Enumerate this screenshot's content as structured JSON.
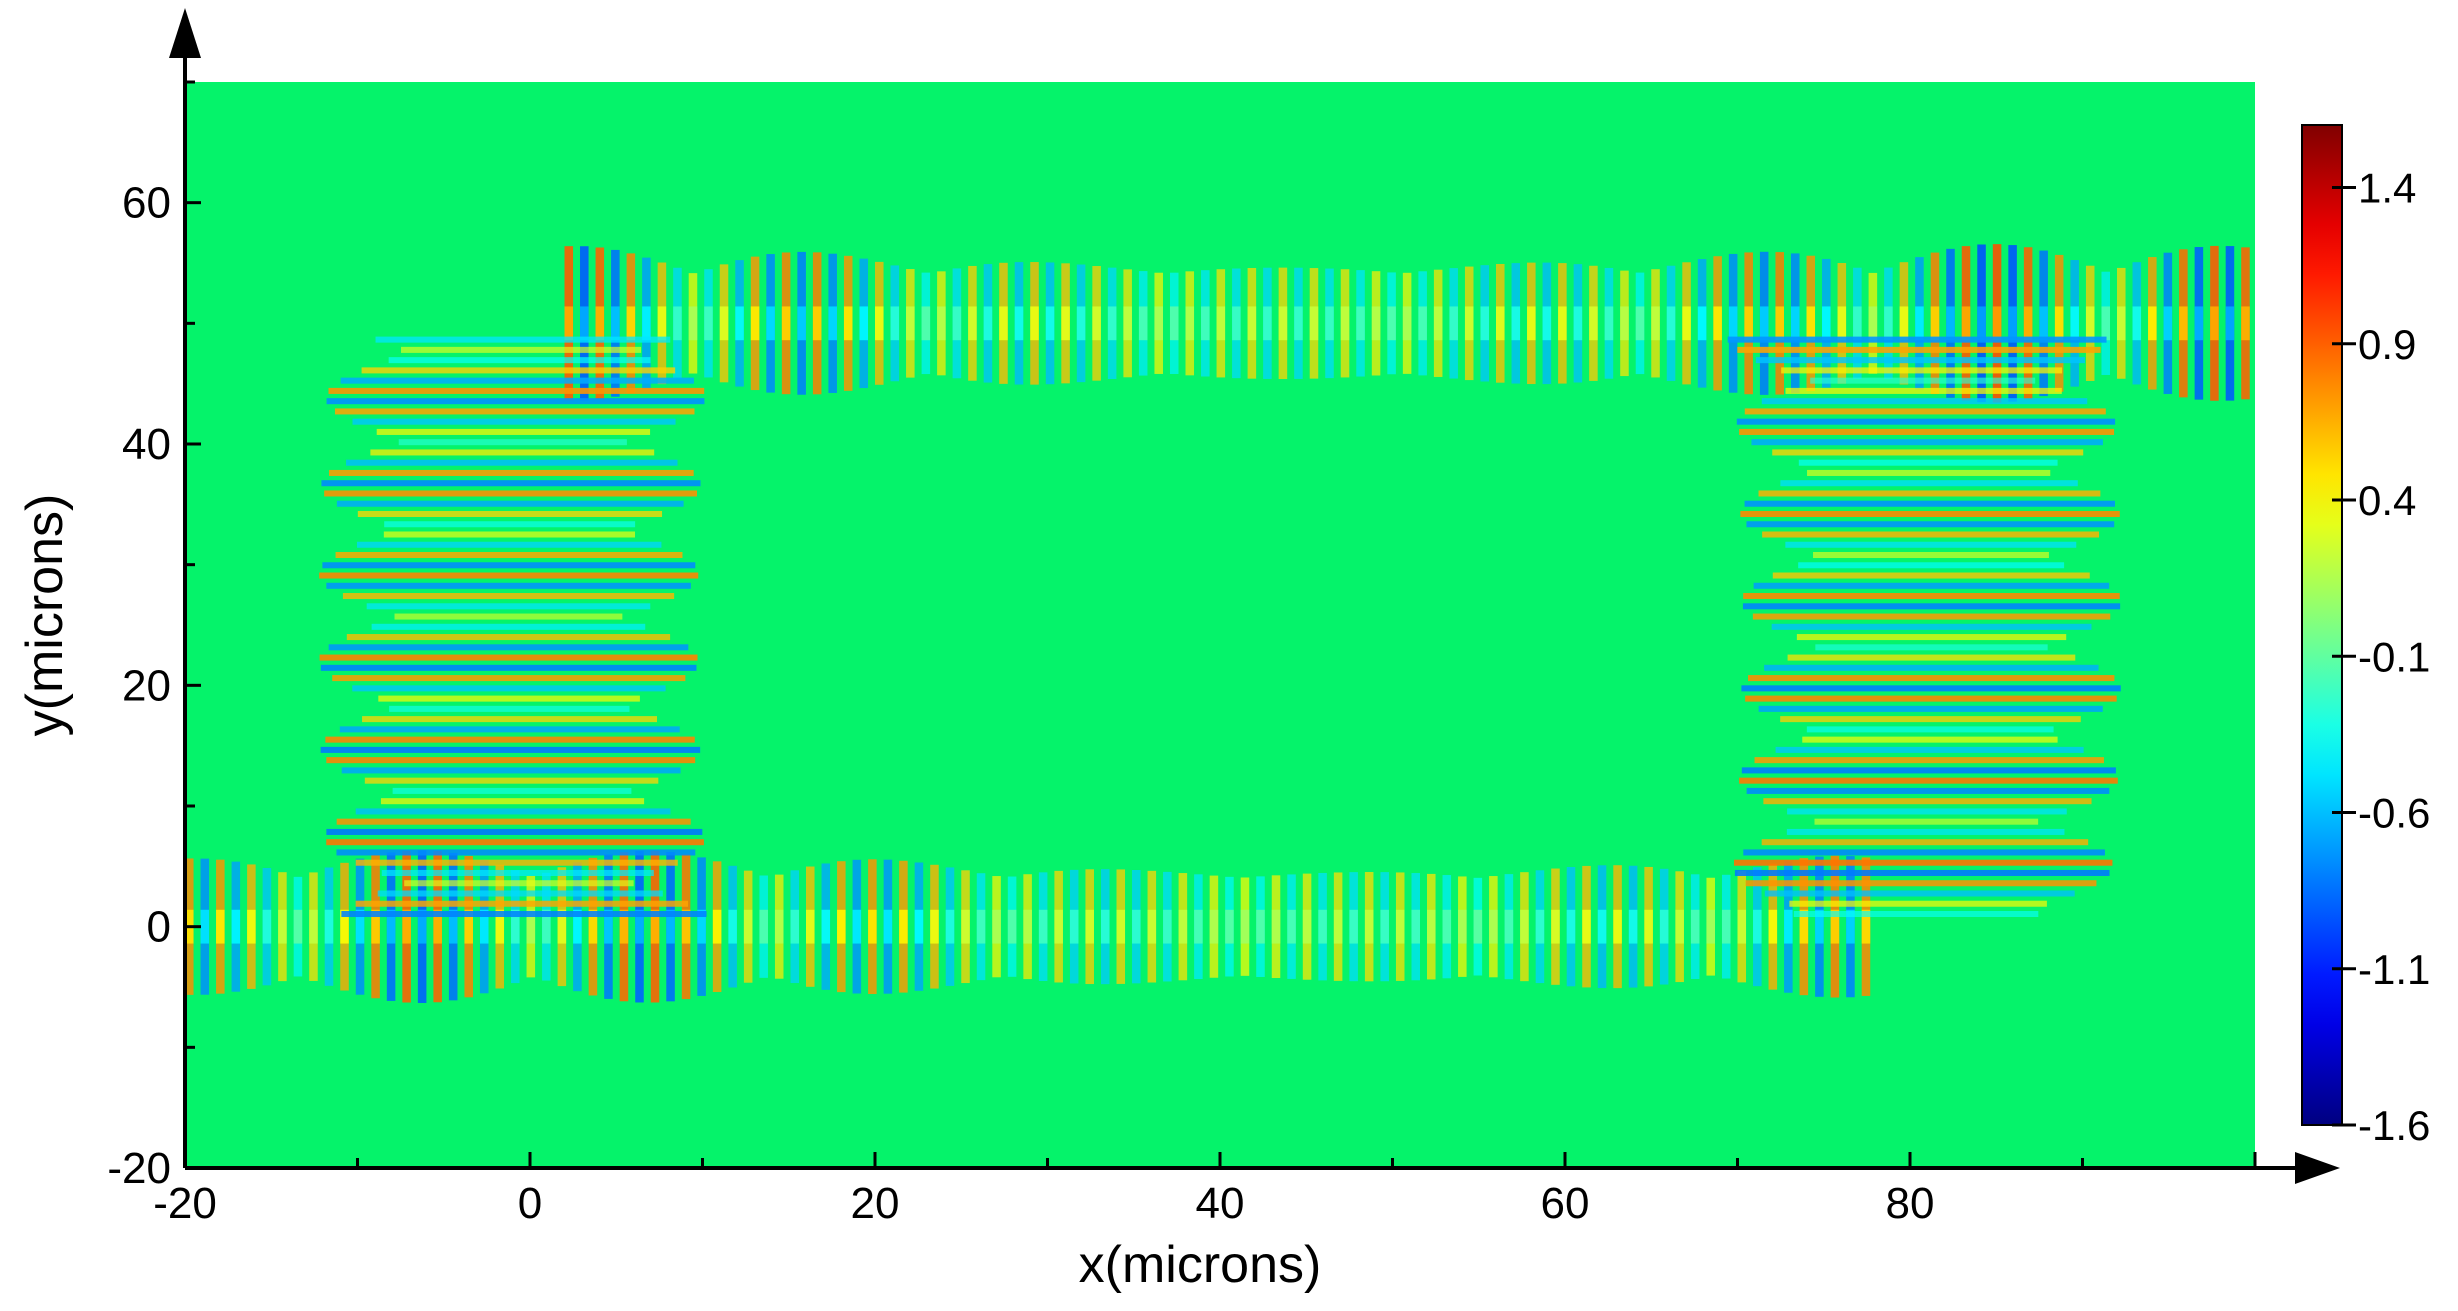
{
  "chart_data": {
    "type": "heatmap",
    "title": "",
    "xlabel": "x(microns)",
    "ylabel": "y(microns)",
    "xlim": [
      -20,
      100
    ],
    "ylim": [
      -20,
      70
    ],
    "x_ticks": [
      -20,
      0,
      20,
      40,
      60,
      80
    ],
    "y_ticks": [
      -20,
      0,
      20,
      40,
      60
    ],
    "x_tick_labels": [
      "-20",
      "0",
      "20",
      "40",
      "60",
      "80"
    ],
    "y_tick_labels": [
      "-20",
      "0",
      "20",
      "40",
      "60"
    ],
    "grid": false,
    "colorbar": {
      "range": [
        -1.6,
        1.6
      ],
      "ticks": [
        1.4,
        0.9,
        0.4,
        -0.1,
        -0.6,
        -1.1,
        -1.6
      ],
      "tick_labels": [
        "1.4",
        "0.9",
        "0.4",
        "-0.1",
        "-0.6",
        "-1.1",
        "-1.6"
      ],
      "colormap": "jet",
      "background_value": -0.1
    },
    "field_features": [
      {
        "name": "bus waveguide",
        "y": 0,
        "x_range": [
          -20,
          78
        ],
        "amplitude": 1.2
      },
      {
        "name": "drop waveguide",
        "y": 50,
        "x_range": [
          2,
          100
        ],
        "amplitude": 1.2
      },
      {
        "name": "left ring arc",
        "center": [
          0,
          25
        ],
        "radius": 25,
        "side": "left",
        "amplitude": 1.0
      },
      {
        "name": "right ring arc",
        "center": [
          80,
          25
        ],
        "radius": 25,
        "side": "right",
        "amplitude": 1.0
      }
    ],
    "background_color": "#05f36a"
  }
}
